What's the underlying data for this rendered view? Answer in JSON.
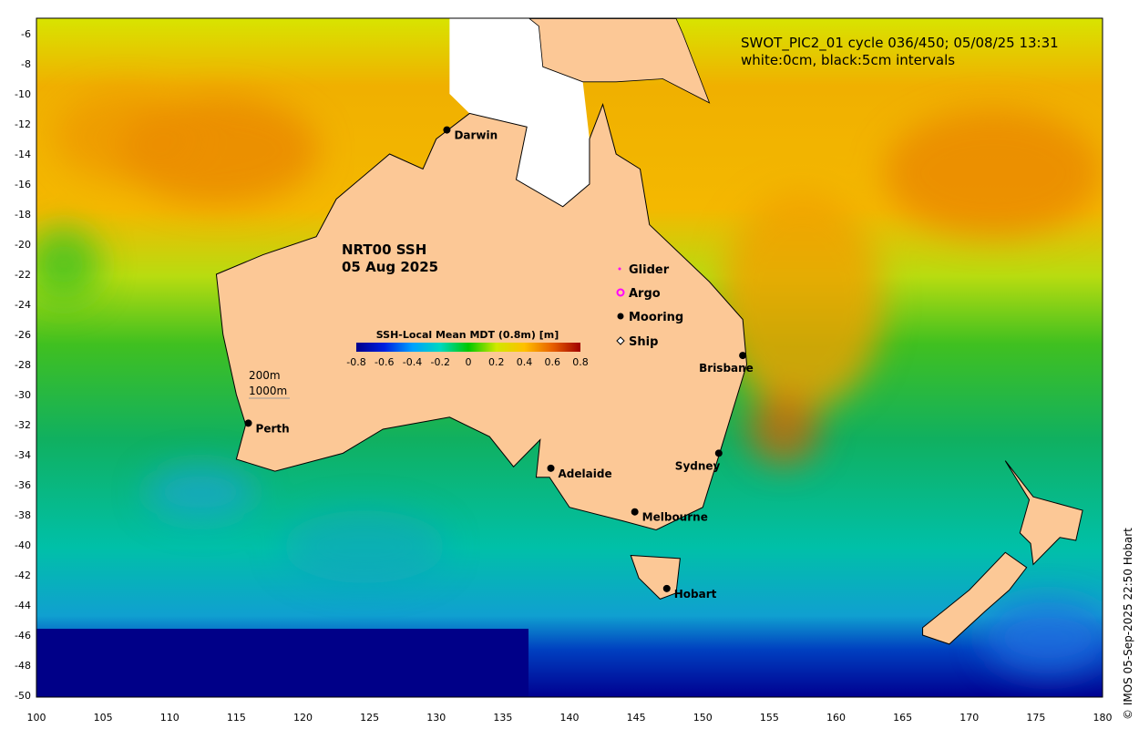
{
  "title_line1": "SWOT_PIC2_01 cycle 036/450; 05/08/25 13:31",
  "title_line2": "white:0cm, black:5cm intervals",
  "product": "NRT00 SSH",
  "date": "05 Aug 2025",
  "depth_legend": [
    "200m",
    "1000m"
  ],
  "colorbar": {
    "label": "SSH-Local Mean MDT (0.8m) [m]",
    "ticks": [
      "-0.8",
      "-0.6",
      "-0.4",
      "-0.2",
      "0",
      "0.2",
      "0.4",
      "0.6",
      "0.8"
    ],
    "colors": [
      "#00008b",
      "#0000ff",
      "#0080ff",
      "#00d0e0",
      "#00c800",
      "#c8e600",
      "#ffd000",
      "#f08000",
      "#b01000"
    ]
  },
  "legend": [
    {
      "label": "Glider",
      "icon": "glider-dot"
    },
    {
      "label": "Argo",
      "icon": "argo-circle"
    },
    {
      "label": "Mooring",
      "icon": "mooring-dot"
    },
    {
      "label": "Ship",
      "icon": "ship-marker"
    }
  ],
  "cities": [
    {
      "name": "Darwin",
      "lon": 130.8,
      "lat": -12.4
    },
    {
      "name": "Perth",
      "lon": 115.9,
      "lat": -31.9
    },
    {
      "name": "Adelaide",
      "lon": 138.6,
      "lat": -34.9
    },
    {
      "name": "Melbourne",
      "lon": 144.9,
      "lat": -37.8
    },
    {
      "name": "Hobart",
      "lon": 147.3,
      "lat": -42.9
    },
    {
      "name": "Sydney",
      "lon": 151.2,
      "lat": -33.9
    },
    {
      "name": "Brisbane",
      "lon": 153.0,
      "lat": -27.4
    }
  ],
  "x_ticks": [
    "100",
    "105",
    "110",
    "115",
    "120",
    "125",
    "130",
    "135",
    "140",
    "145",
    "150",
    "155",
    "160",
    "165",
    "170",
    "175",
    "180"
  ],
  "y_ticks": [
    "-6",
    "-8",
    "-10",
    "-12",
    "-14",
    "-16",
    "-18",
    "-20",
    "-22",
    "-24",
    "-26",
    "-28",
    "-30",
    "-32",
    "-34",
    "-36",
    "-38",
    "-40",
    "-42",
    "-44",
    "-46",
    "-48",
    "-50"
  ],
  "credit": "© IMOS 05-Sep-2025 22:50 Hobart"
}
